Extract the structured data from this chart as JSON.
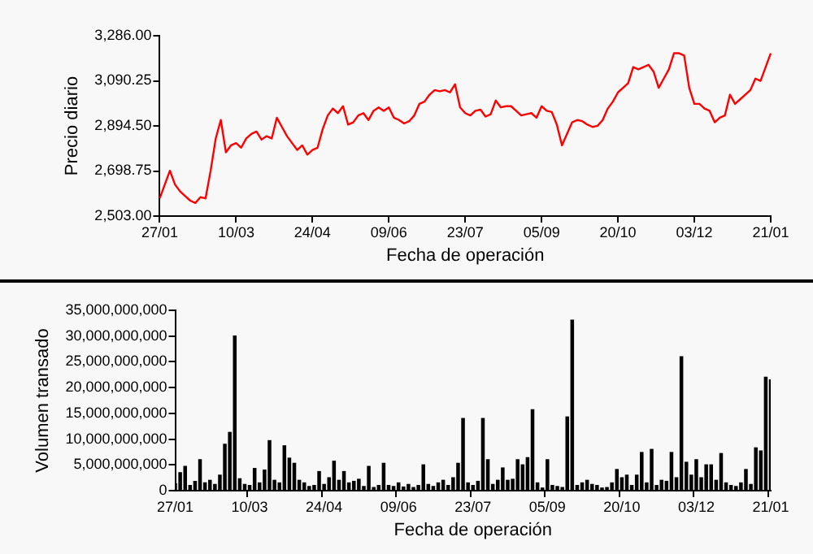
{
  "chart_data": [
    {
      "type": "line",
      "xlabel": "Fecha de operación",
      "ylabel": "Precio diario",
      "color": "#ff0000",
      "categories": [
        "27/01",
        null,
        null,
        null,
        null,
        null,
        null,
        null,
        null,
        null,
        null,
        null,
        null,
        null,
        null,
        "10/03",
        null,
        null,
        null,
        null,
        null,
        null,
        null,
        null,
        null,
        null,
        null,
        null,
        null,
        null,
        "24/04",
        null,
        null,
        null,
        null,
        null,
        null,
        null,
        null,
        null,
        null,
        null,
        null,
        null,
        null,
        "09/06",
        null,
        null,
        null,
        null,
        null,
        null,
        null,
        null,
        null,
        null,
        null,
        null,
        null,
        null,
        "23/07",
        null,
        null,
        null,
        null,
        null,
        null,
        null,
        null,
        null,
        null,
        null,
        null,
        null,
        null,
        "05/09",
        null,
        null,
        null,
        null,
        null,
        null,
        null,
        null,
        null,
        null,
        null,
        null,
        null,
        null,
        "20/10",
        null,
        null,
        null,
        null,
        null,
        null,
        null,
        null,
        null,
        null,
        null,
        null,
        null,
        null,
        "03/12",
        null,
        null,
        null,
        null,
        null,
        null,
        null,
        null,
        null,
        null,
        null,
        null,
        null,
        null,
        "21/01"
      ],
      "values": [
        2580,
        2640,
        2700,
        2640,
        2610,
        2590,
        2570,
        2560,
        2585,
        2580,
        2700,
        2840,
        2920,
        2780,
        2810,
        2820,
        2800,
        2840,
        2860,
        2870,
        2835,
        2850,
        2840,
        2930,
        2890,
        2850,
        2820,
        2790,
        2810,
        2770,
        2790,
        2800,
        2880,
        2940,
        2970,
        2950,
        2980,
        2900,
        2910,
        2940,
        2950,
        2920,
        2960,
        2975,
        2960,
        2975,
        2930,
        2920,
        2905,
        2915,
        2940,
        2990,
        3000,
        3030,
        3050,
        3045,
        3050,
        3040,
        3075,
        2975,
        2950,
        2940,
        2960,
        2965,
        2935,
        2945,
        3005,
        2975,
        2980,
        2980,
        2960,
        2940,
        2945,
        2950,
        2930,
        2980,
        2960,
        2955,
        2900,
        2810,
        2860,
        2910,
        2920,
        2915,
        2900,
        2890,
        2895,
        2920,
        2970,
        3000,
        3040,
        3060,
        3080,
        3150,
        3140,
        3150,
        3160,
        3130,
        3060,
        3100,
        3140,
        3210,
        3210,
        3200,
        3060,
        2990,
        2990,
        2970,
        2960,
        2910,
        2930,
        2940,
        3030,
        2990,
        3010,
        3030,
        3050,
        3100,
        3090,
        3150,
        3210
      ],
      "ylim": [
        2503,
        3286
      ],
      "yticks": [
        {
          "value": 2503,
          "label": "2,503.00"
        },
        {
          "value": 2698.75,
          "label": "2,698.75"
        },
        {
          "value": 2894.5,
          "label": "2,894.50"
        },
        {
          "value": 3090.25,
          "label": "3,090.25"
        },
        {
          "value": 3286,
          "label": "3,286.00"
        }
      ]
    },
    {
      "type": "bar",
      "xlabel": "Fecha de operación",
      "ylabel": "Volumen transado",
      "color": "#000000",
      "categories": [
        "27/01",
        null,
        null,
        null,
        null,
        null,
        null,
        null,
        null,
        null,
        null,
        null,
        null,
        null,
        null,
        "10/03",
        null,
        null,
        null,
        null,
        null,
        null,
        null,
        null,
        null,
        null,
        null,
        null,
        null,
        null,
        "24/04",
        null,
        null,
        null,
        null,
        null,
        null,
        null,
        null,
        null,
        null,
        null,
        null,
        null,
        null,
        "09/06",
        null,
        null,
        null,
        null,
        null,
        null,
        null,
        null,
        null,
        null,
        null,
        null,
        null,
        null,
        "23/07",
        null,
        null,
        null,
        null,
        null,
        null,
        null,
        null,
        null,
        null,
        null,
        null,
        null,
        null,
        "05/09",
        null,
        null,
        null,
        null,
        null,
        null,
        null,
        null,
        null,
        null,
        null,
        null,
        null,
        null,
        "20/10",
        null,
        null,
        null,
        null,
        null,
        null,
        null,
        null,
        null,
        null,
        null,
        null,
        null,
        null,
        "03/12",
        null,
        null,
        null,
        null,
        null,
        null,
        null,
        null,
        null,
        null,
        null,
        null,
        null,
        null,
        "21/01"
      ],
      "values": [
        1300000000,
        3500000000,
        4700000000,
        1000000000,
        1800000000,
        6000000000,
        1500000000,
        2000000000,
        1200000000,
        3000000000,
        9000000000,
        11300000000,
        30000000000,
        2300000000,
        1200000000,
        1000000000,
        4300000000,
        1500000000,
        4000000000,
        9700000000,
        2000000000,
        1500000000,
        8700000000,
        6300000000,
        5300000000,
        2000000000,
        1500000000,
        800000000,
        1000000000,
        3700000000,
        1200000000,
        2500000000,
        5700000000,
        2000000000,
        3700000000,
        1500000000,
        1800000000,
        2200000000,
        800000000,
        4700000000,
        600000000,
        1000000000,
        5300000000,
        1000000000,
        800000000,
        1500000000,
        700000000,
        1200000000,
        600000000,
        1000000000,
        5000000000,
        1200000000,
        800000000,
        1500000000,
        2000000000,
        1000000000,
        2500000000,
        5300000000,
        14000000000,
        1500000000,
        1000000000,
        1800000000,
        14000000000,
        6000000000,
        1200000000,
        2000000000,
        4400000000,
        2000000000,
        2200000000,
        6000000000,
        5000000000,
        6400000000,
        15700000000,
        1500000000,
        500000000,
        6000000000,
        1000000000,
        800000000,
        600000000,
        14300000000,
        33100000000,
        1000000000,
        1500000000,
        2000000000,
        1200000000,
        1000000000,
        500000000,
        600000000,
        1500000000,
        4100000000,
        2500000000,
        3000000000,
        1000000000,
        3000000000,
        7400000000,
        1500000000,
        8000000000,
        1000000000,
        2000000000,
        1800000000,
        7400000000,
        2500000000,
        26000000000,
        5500000000,
        3000000000,
        6000000000,
        2500000000,
        5000000000,
        5000000000,
        2000000000,
        7200000000,
        1500000000,
        1000000000,
        800000000,
        1500000000,
        4100000000,
        1200000000,
        8300000000,
        7700000000,
        22000000000,
        21500000000
      ],
      "ylim": [
        0,
        35000000000
      ],
      "yticks": [
        0,
        {
          "value": 5000000000,
          "label": "5,000,000,000"
        },
        {
          "value": 10000000000,
          "label": "10,000,000,000"
        },
        {
          "value": 15000000000,
          "label": "15,000,000,000"
        },
        {
          "value": 20000000000,
          "label": "20,000,000,000"
        },
        {
          "value": 25000000000,
          "label": "25,000,000,000"
        },
        {
          "value": 30000000000,
          "label": "30,000,000,000"
        },
        {
          "value": 35000000000,
          "label": "35,000,000,000"
        }
      ]
    }
  ]
}
